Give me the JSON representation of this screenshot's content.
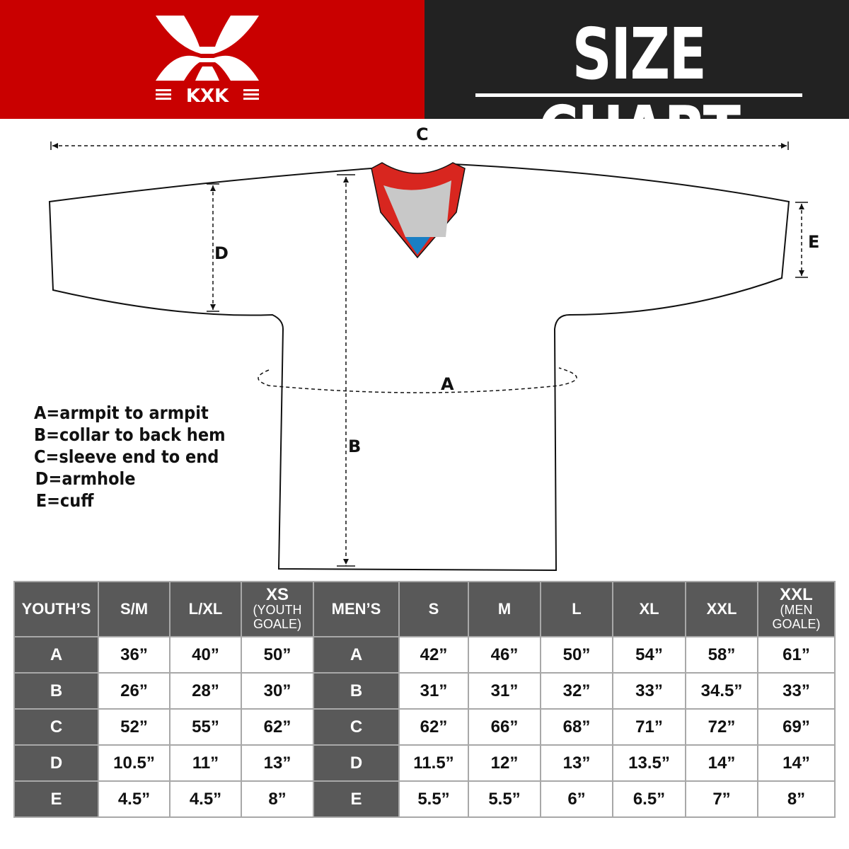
{
  "brand": {
    "logo_text": "KXK",
    "primary_color": "#c90000",
    "dark_color": "#222222"
  },
  "header": {
    "title": "SIZE CHART"
  },
  "diagram": {
    "labels": {
      "a": "A",
      "b": "B",
      "c": "C",
      "d": "D",
      "e": "E"
    },
    "legend": [
      "A=armpit to armpit",
      "B=collar to back hem",
      "C=sleeve end to end",
      "D=armhole",
      "E=cuff"
    ],
    "collar_colors": {
      "trim": "#d8261f",
      "inner": "#c8c8c8",
      "tip": "#1a7fc4"
    }
  },
  "table": {
    "youth": {
      "header": "YOUTH’S",
      "columns": [
        {
          "main": "S/M",
          "sub": ""
        },
        {
          "main": "L/XL",
          "sub": ""
        },
        {
          "main": "XS",
          "sub": "(YOUTH GOALE)"
        }
      ],
      "rows": [
        {
          "label": "A",
          "values": [
            "36”",
            "40”",
            "50”"
          ]
        },
        {
          "label": "B",
          "values": [
            "26”",
            "28”",
            "30”"
          ]
        },
        {
          "label": "C",
          "values": [
            "52”",
            "55”",
            "62”"
          ]
        },
        {
          "label": "D",
          "values": [
            "10.5”",
            "11”",
            "13”"
          ]
        },
        {
          "label": "E",
          "values": [
            "4.5”",
            "4.5”",
            "8”"
          ]
        }
      ]
    },
    "men": {
      "header": "MEN’S",
      "columns": [
        {
          "main": "S",
          "sub": ""
        },
        {
          "main": "M",
          "sub": ""
        },
        {
          "main": "L",
          "sub": ""
        },
        {
          "main": "XL",
          "sub": ""
        },
        {
          "main": "XXL",
          "sub": ""
        },
        {
          "main": "XXL",
          "sub": "(MEN GOALE)"
        }
      ],
      "rows": [
        {
          "label": "A",
          "values": [
            "42”",
            "46”",
            "50”",
            "54”",
            "58”",
            "61”"
          ]
        },
        {
          "label": "B",
          "values": [
            "31”",
            "31”",
            "32”",
            "33”",
            "34.5”",
            "33”"
          ]
        },
        {
          "label": "C",
          "values": [
            "62”",
            "66”",
            "68”",
            "71”",
            "72”",
            "69”"
          ]
        },
        {
          "label": "D",
          "values": [
            "11.5”",
            "12”",
            "13”",
            "13.5”",
            "14”",
            "14”"
          ]
        },
        {
          "label": "E",
          "values": [
            "5.5”",
            "5.5”",
            "6”",
            "6.5”",
            "7”",
            "8”"
          ]
        }
      ]
    }
  }
}
